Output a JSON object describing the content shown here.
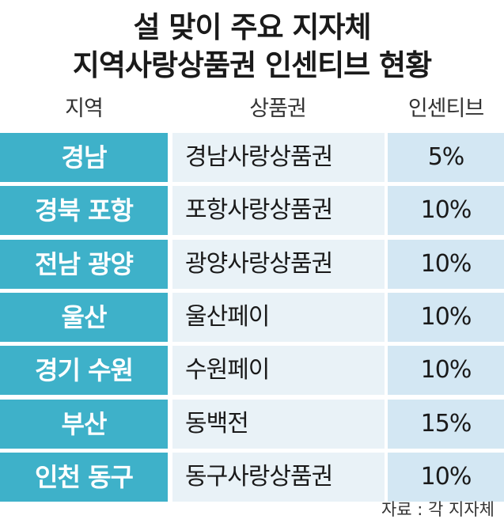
{
  "header": {
    "title": [
      "설 맞이 주요 지자체",
      "지역사랑상품권 인센티브 현황"
    ]
  },
  "table": {
    "columns": [
      "지역",
      "상품권",
      "인센티브"
    ],
    "rows": [
      [
        "경남",
        "경남사랑상품권",
        "5%"
      ],
      [
        "경북 포항",
        "포항사랑상품권",
        "10%"
      ],
      [
        "전남 광양",
        "광양사랑상품권",
        "10%"
      ],
      [
        "울산",
        "울산페이",
        "10%"
      ],
      [
        "경기 수원",
        "수원페이",
        "10%"
      ],
      [
        "부산",
        "동백전",
        "15%"
      ],
      [
        "인천 동구",
        "동구사랑상품권",
        "10%"
      ]
    ]
  },
  "footer": {
    "source": "자료 : 각 지자체"
  }
}
